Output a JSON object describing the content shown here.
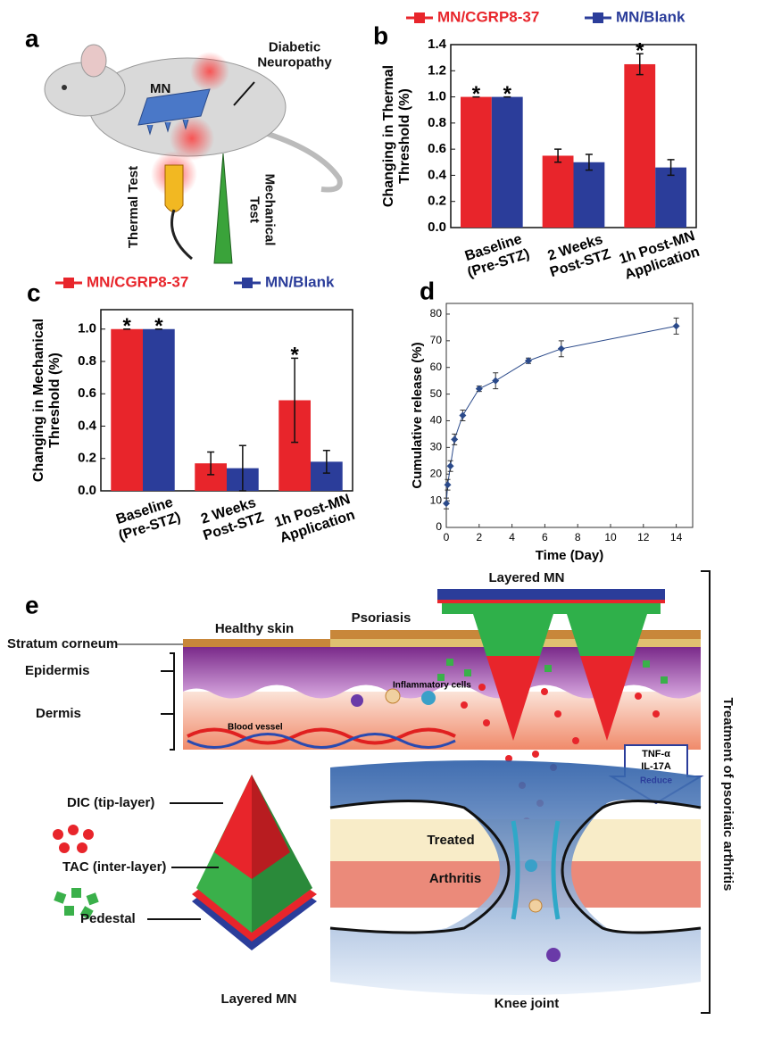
{
  "panel_labels": [
    "a",
    "b",
    "c",
    "d",
    "e"
  ],
  "panel_a": {
    "neuropathy": "Diabetic\nNeuropathy",
    "mn": "MN",
    "thermal": "Thermal Test",
    "mechanical": "Mechanical\nTest"
  },
  "chart_data": [
    {
      "type": "bar",
      "ylabel": "Changing in Thermal\nThreshold (%)",
      "categories": [
        "Baseline\n(Pre-STZ)",
        "2 Weeks\nPost-STZ",
        "1h Post-MN\nApplication"
      ],
      "series": [
        {
          "name": "MN/CGRP8-37",
          "color": "#e8252b",
          "values": [
            1.0,
            0.55,
            1.25
          ],
          "errors": [
            0,
            0.05,
            0.08
          ]
        },
        {
          "name": "MN/Blank",
          "color": "#2b3d9a",
          "values": [
            1.0,
            0.5,
            0.46
          ],
          "errors": [
            0,
            0.06,
            0.06
          ]
        }
      ],
      "annotations": [
        "*",
        "*",
        "*"
      ],
      "ylim": [
        0,
        1.4
      ],
      "yticks": [
        {
          "value": 0,
          "label": "0.0"
        },
        0.2,
        0.4,
        0.6,
        0.8,
        {
          "value": 1,
          "label": "1.0"
        },
        1.2,
        1.4
      ],
      "legend": "top"
    },
    {
      "type": "bar",
      "ylabel": "Changing in Mechanical\nThreshold (%)",
      "categories": [
        "Baseline\n(Pre-STZ)",
        "2 Weeks\nPost-STZ",
        "1h Post-MN\nApplication"
      ],
      "series": [
        {
          "name": "MN/CGRP8-37",
          "color": "#e8252b",
          "values": [
            1.0,
            0.17,
            0.56
          ],
          "errors": [
            0,
            0.07,
            0.26
          ]
        },
        {
          "name": "MN/Blank",
          "color": "#2b3d9a",
          "values": [
            1.0,
            0.14,
            0.18
          ],
          "errors": [
            0,
            0.14,
            0.07
          ]
        }
      ],
      "annotations": [
        "*",
        "*",
        "*"
      ],
      "ylim": [
        0,
        1.12
      ],
      "yticks": [
        {
          "value": 0,
          "label": "0.0"
        },
        0.2,
        0.4,
        0.6,
        0.8,
        {
          "value": 1,
          "label": "1.0"
        }
      ],
      "legend": "top"
    },
    {
      "type": "line",
      "xlabel": "Time (Day)",
      "ylabel": "Cumulative release (%)",
      "x": [
        0,
        0.083,
        0.25,
        0.5,
        1,
        2,
        3,
        5,
        7,
        14
      ],
      "series": [
        {
          "color": "#2b4a8a",
          "values": [
            9,
            16,
            23,
            33,
            42,
            52,
            55,
            62.5,
            67,
            75.5
          ],
          "errors": [
            2,
            2,
            2,
            2,
            2,
            1,
            3,
            1,
            3,
            3
          ]
        }
      ],
      "xlim": [
        0,
        15
      ],
      "xticks": [
        0,
        2,
        4,
        6,
        8,
        10,
        12,
        14
      ],
      "ylim": [
        0,
        84
      ],
      "yticks": [
        0,
        10,
        20,
        30,
        40,
        50,
        60,
        70,
        80
      ]
    }
  ],
  "panel_e": {
    "layered_mn_top": "Layered MN",
    "healthy": "Healthy skin",
    "psoriasis": "Psoriasis",
    "stratum": "Stratum corneum",
    "epidermis": "Epidermis",
    "dermis": "Dermis",
    "vessel": "Blood vessel",
    "cells": "Inflammatory cells",
    "tnf": "TNF-α",
    "il": "IL-17A",
    "reduce": "Reduce",
    "dic": "DIC (tip-layer)",
    "tac": "TAC (inter-layer)",
    "pedestal": "Pedestal",
    "layered_mn": "Layered MN",
    "treated": "Treated",
    "arthritis": "Arthritis",
    "knee": "Knee joint",
    "treatment": "Treatment of psoriatic arthritis"
  }
}
